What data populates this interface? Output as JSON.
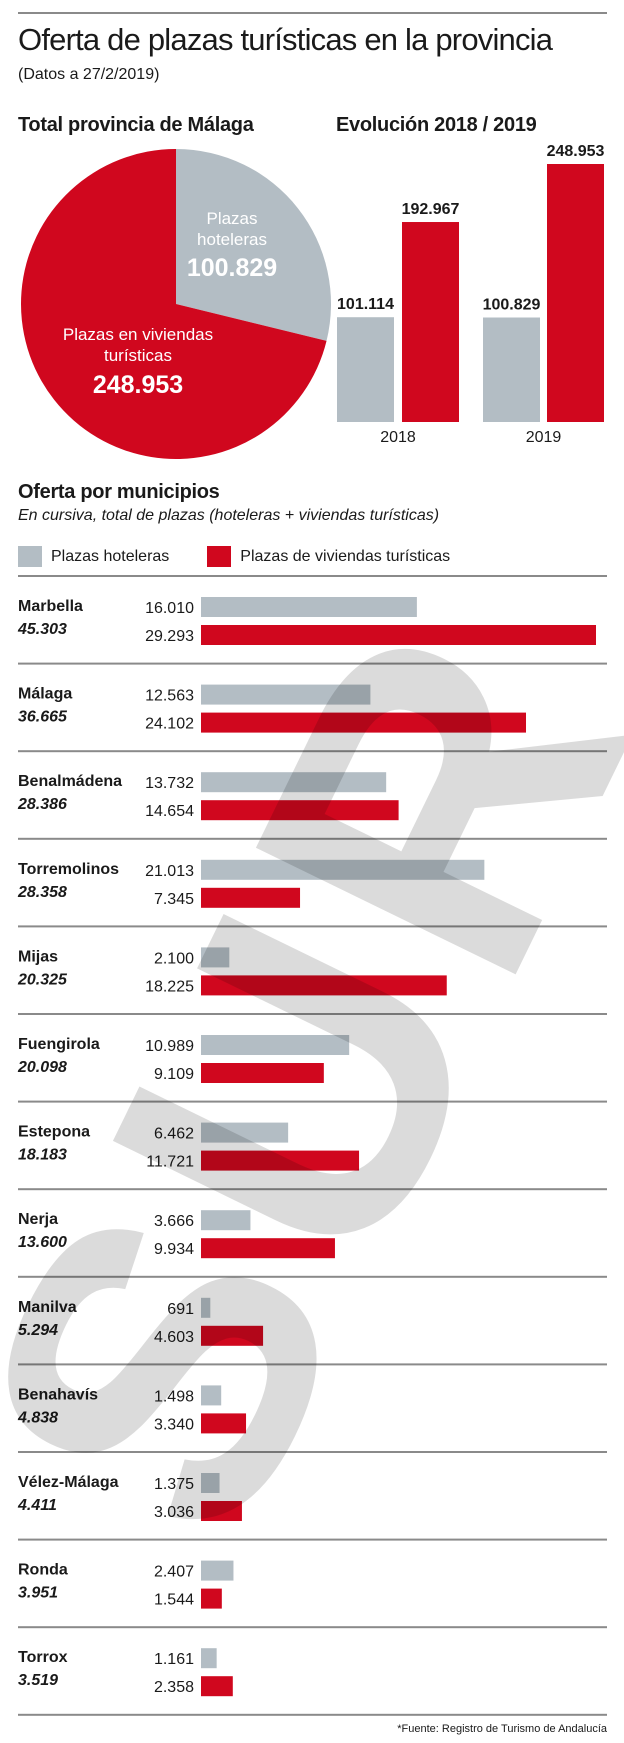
{
  "header": {
    "title": "Oferta de plazas turísticas en la provincia",
    "subtitle": "(Datos a 27/2/2019)"
  },
  "colors": {
    "hoteleras": "#b3bdc4",
    "viviendas": "#d0071e",
    "watermark": "#000000"
  },
  "watermark": "SUR",
  "chart_data": [
    {
      "type": "pie",
      "title": "Total provincia de Málaga",
      "slices": [
        {
          "name_lines": [
            "Plazas",
            "hoteleras"
          ],
          "value": 100829,
          "label": "100.829",
          "color": "#b3bdc4"
        },
        {
          "name_lines": [
            "Plazas en viviendas",
            "turísticas"
          ],
          "value": 248953,
          "label": "248.953",
          "color": "#d0071e"
        }
      ]
    },
    {
      "type": "bar",
      "title": "Evolución 2018 / 2019",
      "categories": [
        "2018",
        "2019"
      ],
      "series": [
        {
          "values": [
            101114,
            100829
          ],
          "labels": [
            "101.114",
            "100.829"
          ],
          "color": "#b3bdc4"
        },
        {
          "values": [
            192967,
            248953
          ],
          "labels": [
            "192.967",
            "248.953"
          ],
          "color": "#d0071e"
        }
      ]
    },
    {
      "type": "bar",
      "orientation": "horizontal",
      "title": "Oferta por municipios",
      "subtitle": "En cursiva, total de plazas (hoteleras + viviendas turísticas)",
      "legend": [
        "Plazas hoteleras",
        "Plazas de viviendas turísticas"
      ],
      "rows": [
        {
          "name": "Marbella",
          "total": "45.303",
          "hoteleras": 16010,
          "hoteleras_label": "16.010",
          "viviendas": 29293,
          "viviendas_label": "29.293"
        },
        {
          "name": "Málaga",
          "total": "36.665",
          "hoteleras": 12563,
          "hoteleras_label": "12.563",
          "viviendas": 24102,
          "viviendas_label": "24.102"
        },
        {
          "name": "Benalmádena",
          "total": "28.386",
          "hoteleras": 13732,
          "hoteleras_label": "13.732",
          "viviendas": 14654,
          "viviendas_label": "14.654"
        },
        {
          "name": "Torremolinos",
          "total": "28.358",
          "hoteleras": 21013,
          "hoteleras_label": "21.013",
          "viviendas": 7345,
          "viviendas_label": "7.345"
        },
        {
          "name": "Mijas",
          "total": "20.325",
          "hoteleras": 2100,
          "hoteleras_label": "2.100",
          "viviendas": 18225,
          "viviendas_label": "18.225"
        },
        {
          "name": "Fuengirola",
          "total": "20.098",
          "hoteleras": 10989,
          "hoteleras_label": "10.989",
          "viviendas": 9109,
          "viviendas_label": "9.109"
        },
        {
          "name": "Estepona",
          "total": "18.183",
          "hoteleras": 6462,
          "hoteleras_label": "6.462",
          "viviendas": 11721,
          "viviendas_label": "11.721"
        },
        {
          "name": "Nerja",
          "total": "13.600",
          "hoteleras": 3666,
          "hoteleras_label": "3.666",
          "viviendas": 9934,
          "viviendas_label": "9.934"
        },
        {
          "name": "Manilva",
          "total": "5.294",
          "hoteleras": 691,
          "hoteleras_label": "691",
          "viviendas": 4603,
          "viviendas_label": "4.603"
        },
        {
          "name": "Benahavís",
          "total": "4.838",
          "hoteleras": 1498,
          "hoteleras_label": "1.498",
          "viviendas": 3340,
          "viviendas_label": "3.340"
        },
        {
          "name": "Vélez-Málaga",
          "total": "4.411",
          "hoteleras": 1375,
          "hoteleras_label": "1.375",
          "viviendas": 3036,
          "viviendas_label": "3.036"
        },
        {
          "name": "Ronda",
          "total": "3.951",
          "hoteleras": 2407,
          "hoteleras_label": "2.407",
          "viviendas": 1544,
          "viviendas_label": "1.544"
        },
        {
          "name": "Torrox",
          "total": "3.519",
          "hoteleras": 1161,
          "hoteleras_label": "1.161",
          "viviendas": 2358,
          "viviendas_label": "2.358"
        }
      ]
    }
  ],
  "footer": "*Fuente: Registro de Turismo de Andalucía"
}
